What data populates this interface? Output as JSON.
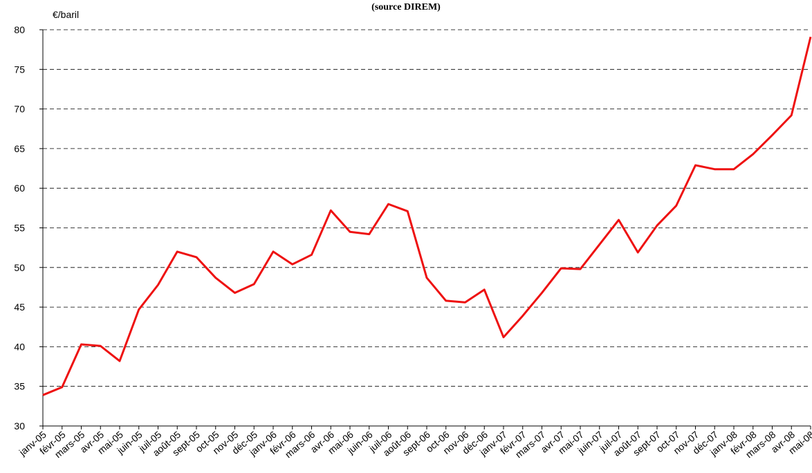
{
  "chart_data": {
    "type": "line",
    "subtitle": "(source DIREM)",
    "y_label": "€/baril",
    "categories": [
      "janv-05",
      "févr-05",
      "mars-05",
      "avr-05",
      "mai-05",
      "juin-05",
      "juil-05",
      "août-05",
      "sept-05",
      "oct-05",
      "nov-05",
      "déc-05",
      "janv-06",
      "févr-06",
      "mars-06",
      "avr-06",
      "mai-06",
      "juin-06",
      "juil-06",
      "août-06",
      "sept-06",
      "oct-06",
      "nov-06",
      "déc-06",
      "janv-07",
      "févr-07",
      "mars-07",
      "avr-07",
      "mai-07",
      "juin-07",
      "juil-07",
      "août-07",
      "sept-07",
      "oct-07",
      "nov-07",
      "déc-07",
      "janv-08",
      "févr-08",
      "mars-08",
      "avr-08",
      "mai-08"
    ],
    "values": [
      33.9,
      34.9,
      40.3,
      40.1,
      38.2,
      44.7,
      47.8,
      52.0,
      51.3,
      48.7,
      46.8,
      47.9,
      52.0,
      50.4,
      51.6,
      57.2,
      54.5,
      54.2,
      58.0,
      57.1,
      48.7,
      45.8,
      45.6,
      47.2,
      41.2,
      43.9,
      46.8,
      49.9,
      49.8,
      52.9,
      56.0,
      51.9,
      55.3,
      57.8,
      62.9,
      62.4,
      62.4,
      64.3,
      66.7,
      69.2,
      79.1
    ],
    "color": "#ee1111",
    "ylim": [
      30,
      80
    ],
    "yticks": [
      30,
      35,
      40,
      45,
      50,
      55,
      60,
      65,
      70,
      75,
      80
    ],
    "grid": true
  }
}
